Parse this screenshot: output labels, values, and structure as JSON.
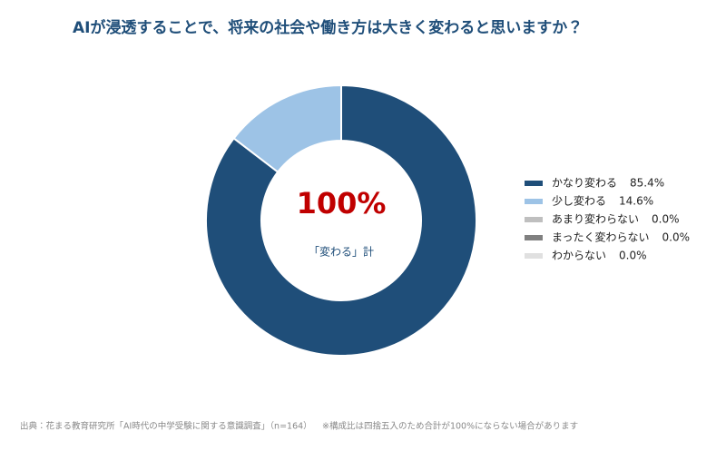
{
  "chart_data": {
    "type": "pie",
    "donut": true,
    "title": "AIが浸透することで、将来の社会や働き方は大きく変わると思いますか？",
    "center_label": "100%",
    "center_sublabel": "「変わる」計",
    "categories": [
      "かなり変わる",
      "少し変わる",
      "あまり変わらない",
      "まったく変わらない",
      "わからない"
    ],
    "values": [
      85.4,
      14.6,
      0.0,
      0.0,
      0.0
    ],
    "value_labels": [
      "85.4%",
      "14.6%",
      "0.0%",
      "0.0%",
      "0.0%"
    ],
    "colors": [
      "#1f4e79",
      "#9dc3e6",
      "#bfbfbf",
      "#808080",
      "#e0e0e0"
    ],
    "legend": "right",
    "source": "出典：花まる教育研究所「AI時代の中学受験に関する意識調査」（n=164）",
    "note": "※構成比は四捨五入のため合計が100%にならない場合があります"
  }
}
